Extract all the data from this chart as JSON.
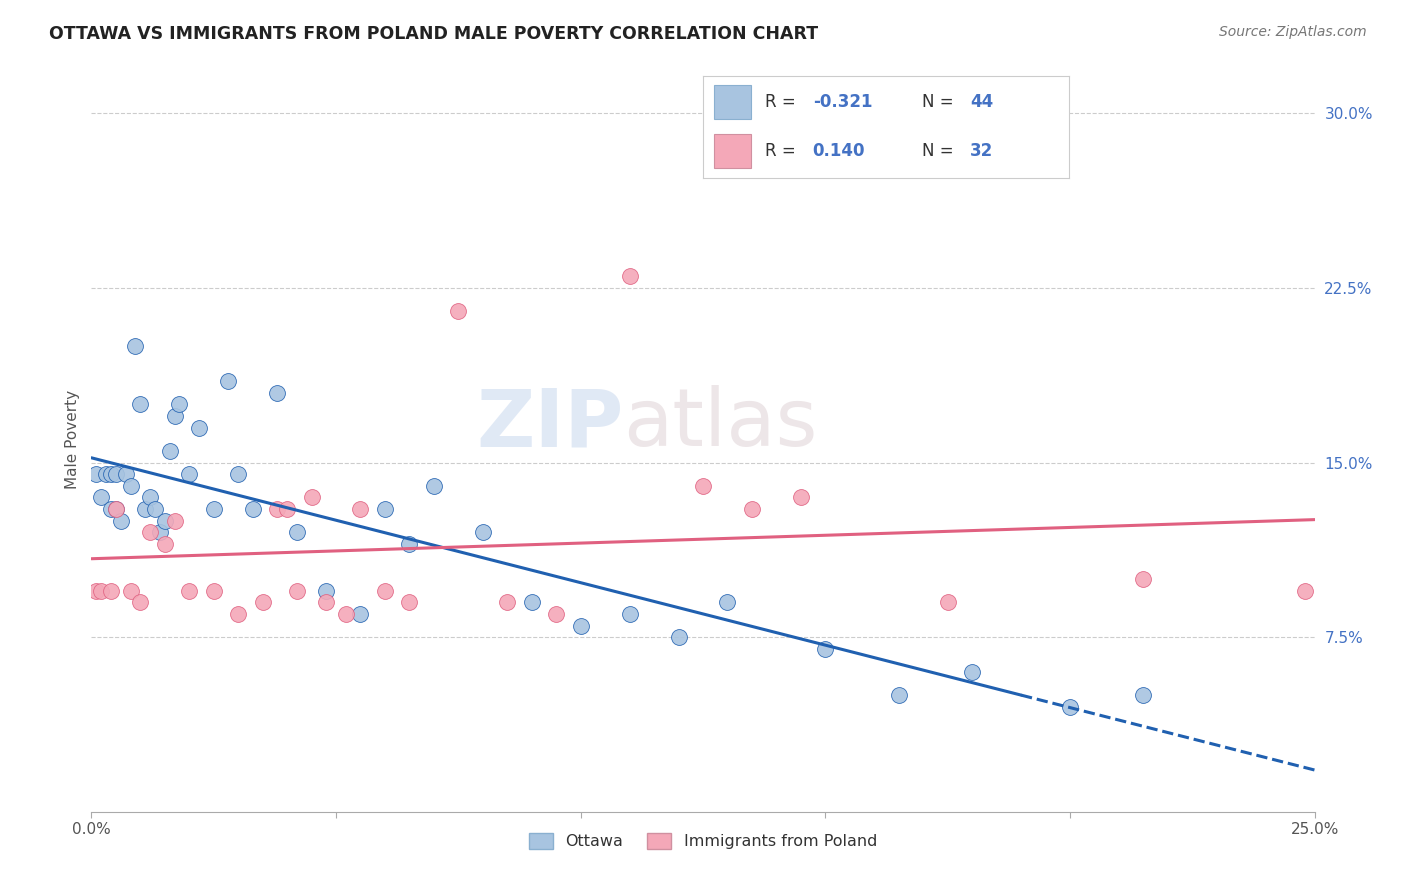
{
  "title": "OTTAWA VS IMMIGRANTS FROM POLAND MALE POVERTY CORRELATION CHART",
  "source": "Source: ZipAtlas.com",
  "ylabel": "Male Poverty",
  "xlim": [
    0.0,
    0.25
  ],
  "ylim": [
    0.0,
    0.32
  ],
  "xticks": [
    0.0,
    0.05,
    0.1,
    0.15,
    0.2,
    0.25
  ],
  "xticklabels": [
    "0.0%",
    "",
    "",
    "",
    "",
    "25.0%"
  ],
  "yticks_right": [
    0.075,
    0.15,
    0.225,
    0.3
  ],
  "ytick_right_labels": [
    "7.5%",
    "15.0%",
    "22.5%",
    "30.0%"
  ],
  "grid_yticks": [
    0.075,
    0.15,
    0.225,
    0.3
  ],
  "watermark_zip": "ZIP",
  "watermark_atlas": "atlas",
  "blue_color": "#a8c4e0",
  "pink_color": "#f4a8b8",
  "blue_line_color": "#2060b0",
  "pink_line_color": "#e06080",
  "ottawa_x": [
    0.001,
    0.002,
    0.003,
    0.004,
    0.004,
    0.005,
    0.005,
    0.006,
    0.007,
    0.008,
    0.009,
    0.01,
    0.011,
    0.012,
    0.013,
    0.014,
    0.015,
    0.016,
    0.017,
    0.018,
    0.02,
    0.022,
    0.025,
    0.028,
    0.03,
    0.033,
    0.038,
    0.042,
    0.048,
    0.055,
    0.06,
    0.065,
    0.07,
    0.08,
    0.09,
    0.1,
    0.11,
    0.12,
    0.13,
    0.15,
    0.165,
    0.18,
    0.2,
    0.215
  ],
  "ottawa_y": [
    0.145,
    0.135,
    0.145,
    0.13,
    0.145,
    0.13,
    0.145,
    0.125,
    0.145,
    0.14,
    0.2,
    0.175,
    0.13,
    0.135,
    0.13,
    0.12,
    0.125,
    0.155,
    0.17,
    0.175,
    0.145,
    0.165,
    0.13,
    0.185,
    0.145,
    0.13,
    0.18,
    0.12,
    0.095,
    0.085,
    0.13,
    0.115,
    0.14,
    0.12,
    0.09,
    0.08,
    0.085,
    0.075,
    0.09,
    0.07,
    0.05,
    0.06,
    0.045,
    0.05
  ],
  "poland_x": [
    0.001,
    0.002,
    0.004,
    0.005,
    0.008,
    0.01,
    0.012,
    0.015,
    0.017,
    0.02,
    0.025,
    0.03,
    0.035,
    0.038,
    0.04,
    0.042,
    0.045,
    0.048,
    0.052,
    0.055,
    0.06,
    0.065,
    0.075,
    0.085,
    0.095,
    0.11,
    0.125,
    0.135,
    0.145,
    0.175,
    0.215,
    0.248
  ],
  "poland_y": [
    0.095,
    0.095,
    0.095,
    0.13,
    0.095,
    0.09,
    0.12,
    0.115,
    0.125,
    0.095,
    0.095,
    0.085,
    0.09,
    0.13,
    0.13,
    0.095,
    0.135,
    0.09,
    0.085,
    0.13,
    0.095,
    0.09,
    0.215,
    0.09,
    0.085,
    0.23,
    0.14,
    0.13,
    0.135,
    0.09,
    0.1,
    0.095
  ],
  "background_color": "#ffffff"
}
